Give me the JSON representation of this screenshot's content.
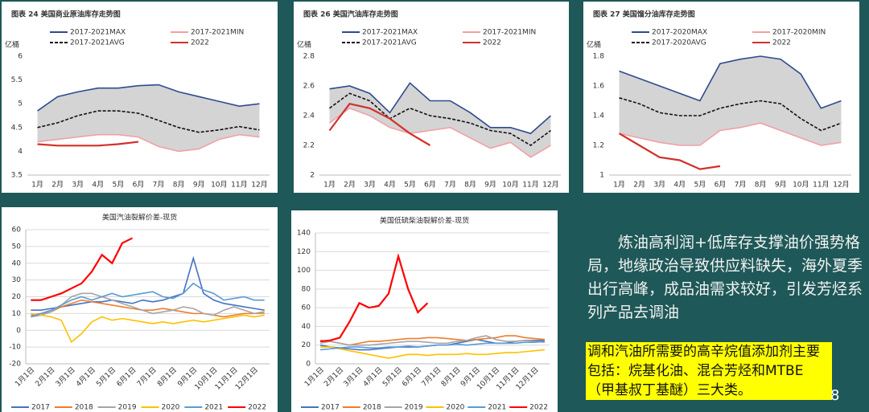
{
  "chart_data": [
    {
      "type": "line",
      "title": "图表 24 美国商业原油库存走势图",
      "y_label": "亿桶",
      "legend": "top",
      "grid": false,
      "band_color": "#d4d4d4",
      "categories": [
        "1月",
        "2月",
        "3月",
        "4月",
        "5月",
        "6月",
        "7月",
        "8月",
        "9月",
        "10月",
        "11月",
        "12月"
      ],
      "ylim": [
        3.5,
        6
      ],
      "yticks": [
        3.5,
        4,
        4.5,
        5,
        5.5,
        6
      ],
      "series": [
        {
          "name": "2017-2021MAX",
          "color": "#2f4b8f",
          "values": [
            4.85,
            5.15,
            5.25,
            5.33,
            5.33,
            5.38,
            5.4,
            5.25,
            5.15,
            5.05,
            4.95,
            5.0
          ]
        },
        {
          "name": "2017-2021MIN",
          "color": "#f2a0a6",
          "values": [
            4.2,
            4.25,
            4.3,
            4.35,
            4.35,
            4.3,
            4.1,
            4.0,
            4.05,
            4.25,
            4.35,
            4.3
          ]
        },
        {
          "name": "2017-2021AVG",
          "color": "#111111",
          "dash": true,
          "values": [
            4.5,
            4.6,
            4.75,
            4.85,
            4.85,
            4.8,
            4.65,
            4.5,
            4.4,
            4.45,
            4.52,
            4.45
          ]
        },
        {
          "name": "2022",
          "color": "#d2302a",
          "values": [
            4.15,
            4.12,
            4.12,
            4.12,
            4.15,
            4.2,
            null,
            null,
            null,
            null,
            null,
            null
          ]
        }
      ]
    },
    {
      "type": "line",
      "title": "图表 26 美国汽油库存走势图",
      "y_label": "亿桶",
      "legend": "top",
      "grid": false,
      "band_color": "#d4d4d4",
      "categories": [
        "1月",
        "2月",
        "3月",
        "4月",
        "5月",
        "6月",
        "7月",
        "8月",
        "9月",
        "10月",
        "11月",
        "12月"
      ],
      "ylim": [
        2,
        2.8
      ],
      "yticks": [
        2,
        2.2,
        2.4,
        2.6,
        2.8
      ],
      "series": [
        {
          "name": "2017-2021MAX",
          "color": "#2f4b8f",
          "values": [
            2.58,
            2.6,
            2.55,
            2.42,
            2.62,
            2.5,
            2.5,
            2.42,
            2.32,
            2.32,
            2.28,
            2.4
          ]
        },
        {
          "name": "2017-2021MIN",
          "color": "#f2a0a6",
          "values": [
            2.35,
            2.45,
            2.4,
            2.32,
            2.28,
            2.3,
            2.32,
            2.25,
            2.18,
            2.22,
            2.12,
            2.2
          ]
        },
        {
          "name": "2017-2021AVG",
          "color": "#111111",
          "dash": true,
          "values": [
            2.45,
            2.55,
            2.5,
            2.38,
            2.45,
            2.4,
            2.38,
            2.35,
            2.3,
            2.28,
            2.2,
            2.3
          ]
        },
        {
          "name": "2022",
          "color": "#d2302a",
          "values": [
            2.3,
            2.48,
            2.45,
            2.38,
            2.28,
            2.2,
            null,
            null,
            null,
            null,
            null,
            null
          ]
        }
      ]
    },
    {
      "type": "line",
      "title": "图表 27 美国馏分油库存走势图",
      "y_label": "亿桶",
      "legend": "top",
      "grid": false,
      "band_color": "#d4d4d4",
      "categories": [
        "1月",
        "2月",
        "3月",
        "4月",
        "5月",
        "6月",
        "7月",
        "8月",
        "9月",
        "10月",
        "11月",
        "12月"
      ],
      "ylim": [
        1,
        1.8
      ],
      "yticks": [
        1,
        1.2,
        1.4,
        1.6,
        1.8
      ],
      "series": [
        {
          "name": "2017-2020MAX",
          "color": "#2f4b8f",
          "values": [
            1.7,
            1.65,
            1.6,
            1.55,
            1.5,
            1.75,
            1.78,
            1.8,
            1.78,
            1.68,
            1.45,
            1.5
          ]
        },
        {
          "name": "2017-2020MIN",
          "color": "#f2a0a6",
          "values": [
            1.28,
            1.25,
            1.22,
            1.2,
            1.2,
            1.3,
            1.32,
            1.35,
            1.3,
            1.25,
            1.2,
            1.22
          ]
        },
        {
          "name": "2017-2020AVG",
          "color": "#111111",
          "dash": true,
          "values": [
            1.52,
            1.48,
            1.42,
            1.4,
            1.4,
            1.45,
            1.48,
            1.5,
            1.48,
            1.38,
            1.3,
            1.35
          ]
        },
        {
          "name": "2022",
          "color": "#d2302a",
          "values": [
            1.28,
            1.2,
            1.12,
            1.1,
            1.04,
            1.06,
            null,
            null,
            null,
            null,
            null,
            null
          ]
        }
      ]
    },
    {
      "type": "line",
      "title": "美国汽油裂解价差-现货",
      "legend": "bottom",
      "grid": true,
      "categories": [
        "1月1日",
        null,
        "2月1日",
        null,
        "3月1日",
        null,
        "4月1日",
        null,
        "5月1日",
        null,
        "6月1日",
        null,
        "7月1日",
        null,
        "8月1日",
        null,
        "9月1日",
        null,
        "10月1日",
        null,
        "11月1日",
        null,
        "12月1日",
        null
      ],
      "ylim": [
        -20,
        60
      ],
      "yticks": [
        -20,
        -10,
        0,
        10,
        20,
        30,
        40,
        50,
        60
      ],
      "series": [
        {
          "name": "2017",
          "color": "#4472c4",
          "values": [
            12,
            12,
            13,
            14,
            15,
            16,
            17,
            17,
            18,
            17,
            16,
            18,
            17,
            18,
            20,
            22,
            43,
            22,
            18,
            16,
            15,
            14,
            13,
            12
          ]
        },
        {
          "name": "2018",
          "color": "#ed7d31",
          "values": [
            9,
            10,
            11,
            14,
            16,
            18,
            17,
            16,
            15,
            14,
            13,
            12,
            12,
            13,
            12,
            11,
            10,
            10,
            9,
            8,
            9,
            10,
            10,
            11
          ]
        },
        {
          "name": "2019",
          "color": "#a5a5a5",
          "values": [
            8,
            9,
            11,
            15,
            20,
            22,
            22,
            20,
            18,
            16,
            14,
            12,
            10,
            11,
            12,
            14,
            13,
            10,
            9,
            12,
            14,
            12,
            10,
            10
          ]
        },
        {
          "name": "2020",
          "color": "#ffc000",
          "values": [
            10,
            9,
            8,
            6,
            -7,
            -2,
            5,
            8,
            6,
            7,
            6,
            5,
            4,
            5,
            4,
            5,
            6,
            5,
            6,
            7,
            8,
            9,
            8,
            9
          ]
        },
        {
          "name": "2021",
          "color": "#5b9bd5",
          "values": [
            8,
            10,
            12,
            15,
            18,
            20,
            18,
            20,
            22,
            20,
            21,
            22,
            23,
            20,
            19,
            22,
            28,
            24,
            22,
            18,
            19,
            20,
            18,
            18
          ]
        },
        {
          "name": "2022",
          "color": "#ff0000",
          "values": [
            18,
            18,
            20,
            22,
            25,
            28,
            35,
            45,
            40,
            52,
            55,
            null,
            null,
            null,
            null,
            null,
            null,
            null,
            null,
            null,
            null,
            null,
            null,
            null
          ]
        }
      ]
    },
    {
      "type": "line",
      "title": "美国低硫柴油裂解价差-现货",
      "legend": "bottom",
      "grid": true,
      "categories": [
        "1月1日",
        null,
        "2月1日",
        null,
        "3月1日",
        null,
        "4月1日",
        null,
        "5月1日",
        null,
        "6月1日",
        null,
        "7月1日",
        null,
        "8月1日",
        null,
        "9月1日",
        null,
        "10月1日",
        null,
        "11月1日",
        null,
        "12月1日",
        null
      ],
      "ylim": [
        0,
        140
      ],
      "yticks": [
        0,
        20,
        40,
        60,
        80,
        100,
        120,
        140
      ],
      "series": [
        {
          "name": "2017",
          "color": "#4472c4",
          "values": [
            20,
            18,
            17,
            16,
            15,
            15,
            16,
            17,
            18,
            18,
            18,
            19,
            20,
            20,
            22,
            24,
            26,
            24,
            22,
            22,
            24,
            25,
            25,
            25
          ]
        },
        {
          "name": "2018",
          "color": "#ed7d31",
          "values": [
            25,
            24,
            22,
            20,
            22,
            24,
            24,
            25,
            26,
            27,
            27,
            28,
            28,
            27,
            26,
            25,
            26,
            27,
            28,
            30,
            30,
            28,
            27,
            26
          ]
        },
        {
          "name": "2019",
          "color": "#a5a5a5",
          "values": [
            22,
            24,
            22,
            20,
            20,
            20,
            21,
            22,
            23,
            24,
            24,
            23,
            22,
            22,
            24,
            25,
            28,
            30,
            26,
            24,
            24,
            25,
            24,
            23
          ]
        },
        {
          "name": "2020",
          "color": "#ffc000",
          "values": [
            18,
            18,
            16,
            14,
            12,
            10,
            8,
            6,
            8,
            10,
            10,
            9,
            10,
            10,
            10,
            11,
            10,
            10,
            11,
            12,
            12,
            13,
            14,
            15
          ]
        },
        {
          "name": "2021",
          "color": "#5b9bd5",
          "values": [
            15,
            16,
            17,
            18,
            18,
            17,
            17,
            18,
            18,
            19,
            18,
            19,
            20,
            20,
            21,
            20,
            21,
            22,
            22,
            22,
            22,
            23,
            23,
            24
          ]
        },
        {
          "name": "2022",
          "color": "#ff0000",
          "values": [
            24,
            25,
            28,
            45,
            65,
            60,
            62,
            75,
            115,
            80,
            55,
            65,
            null,
            null,
            null,
            null,
            null,
            null,
            null,
            null,
            null,
            null,
            null,
            null
          ]
        }
      ]
    }
  ],
  "slide": {
    "paragraph": "炼油高利润+低库存支撑油价强势格局，地缘政治导致供应料缺失，海外夏季出行高峰，成品油需求较好，引发芳烃系列产品去调油",
    "highlight": "调和汽油所需要的高辛烷值添加剂主要包括：烷基化油、混合芳烃和MTBE（甲基叔丁基醚）三大类。",
    "page_number": "8"
  }
}
